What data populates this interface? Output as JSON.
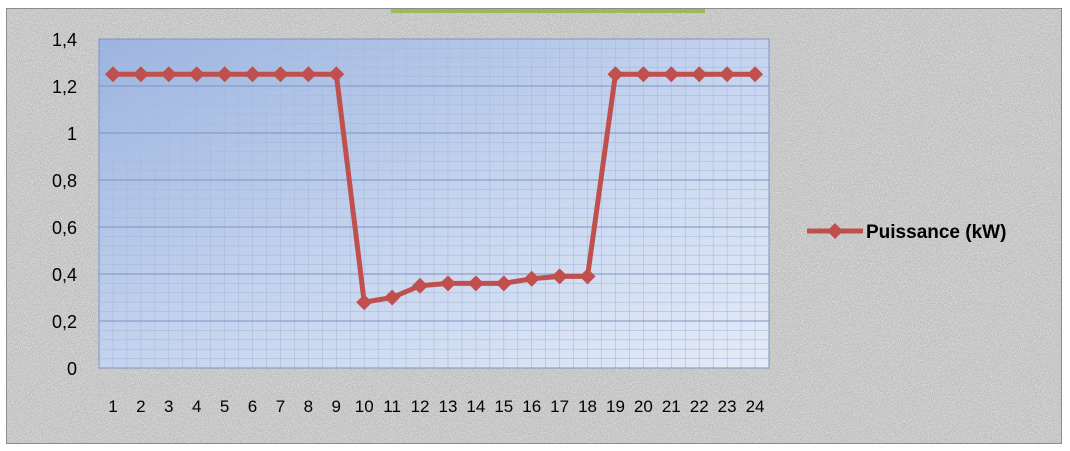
{
  "chart_data": {
    "type": "line",
    "title": "",
    "xlabel": "",
    "ylabel": "",
    "categories": [
      "1",
      "2",
      "3",
      "4",
      "5",
      "6",
      "7",
      "8",
      "9",
      "10",
      "11",
      "12",
      "13",
      "14",
      "15",
      "16",
      "17",
      "18",
      "19",
      "20",
      "21",
      "22",
      "23",
      "24"
    ],
    "series": [
      {
        "name": "Puissance (kW)",
        "values": [
          1.25,
          1.25,
          1.25,
          1.25,
          1.25,
          1.25,
          1.25,
          1.25,
          1.25,
          0.28,
          0.3,
          0.35,
          0.36,
          0.36,
          0.36,
          0.38,
          0.39,
          0.39,
          1.25,
          1.25,
          1.25,
          1.25,
          1.25,
          1.25
        ],
        "color": "#c0504d"
      }
    ],
    "ylim": [
      0,
      1.4
    ],
    "yticks": [
      "0",
      "0,2",
      "0,4",
      "0,6",
      "0,8",
      "1",
      "1,2",
      "1,4"
    ],
    "grid": true,
    "plot_background": "gradient blue",
    "legend_position": "right",
    "decimal_separator": ","
  },
  "colors": {
    "series": "#c0504d",
    "marker": "#c0504d",
    "top_accent": "#9bbb59",
    "grid_line": "#8fa3c9"
  }
}
